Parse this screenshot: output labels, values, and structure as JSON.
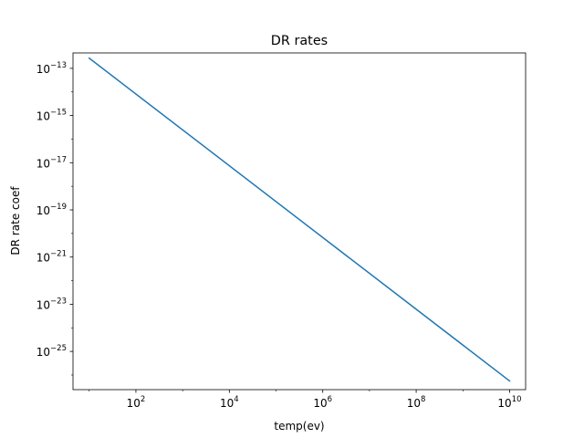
{
  "chart_data": {
    "type": "line",
    "title": "DR rates",
    "xlabel": "temp(ev)",
    "ylabel": "DR rate coef",
    "xscale": "log",
    "yscale": "log",
    "xlim": [
      4.5,
      22000000000
    ],
    "ylim": [
      2.4e-27,
      4.5e-13
    ],
    "grid": false,
    "legend": "none",
    "x_ticks": [
      {
        "base": "10",
        "exp": "2",
        "value": 100
      },
      {
        "base": "10",
        "exp": "4",
        "value": 10000
      },
      {
        "base": "10",
        "exp": "6",
        "value": 1000000
      },
      {
        "base": "10",
        "exp": "8",
        "value": 100000000
      },
      {
        "base": "10",
        "exp": "10",
        "value": 10000000000
      }
    ],
    "y_ticks": [
      {
        "base": "10",
        "exp": "−13",
        "value": 1e-13
      },
      {
        "base": "10",
        "exp": "−15",
        "value": 1e-15
      },
      {
        "base": "10",
        "exp": "−17",
        "value": 1e-17
      },
      {
        "base": "10",
        "exp": "−19",
        "value": 1e-19
      },
      {
        "base": "10",
        "exp": "−21",
        "value": 1e-21
      },
      {
        "base": "10",
        "exp": "−23",
        "value": 1e-23
      },
      {
        "base": "10",
        "exp": "−25",
        "value": 1e-25
      }
    ],
    "series": [
      {
        "name": "DR rate",
        "color": "#1f77b4",
        "x": [
          10,
          10000000000
        ],
        "y": [
          2.7e-13,
          5.6e-27
        ]
      }
    ]
  }
}
